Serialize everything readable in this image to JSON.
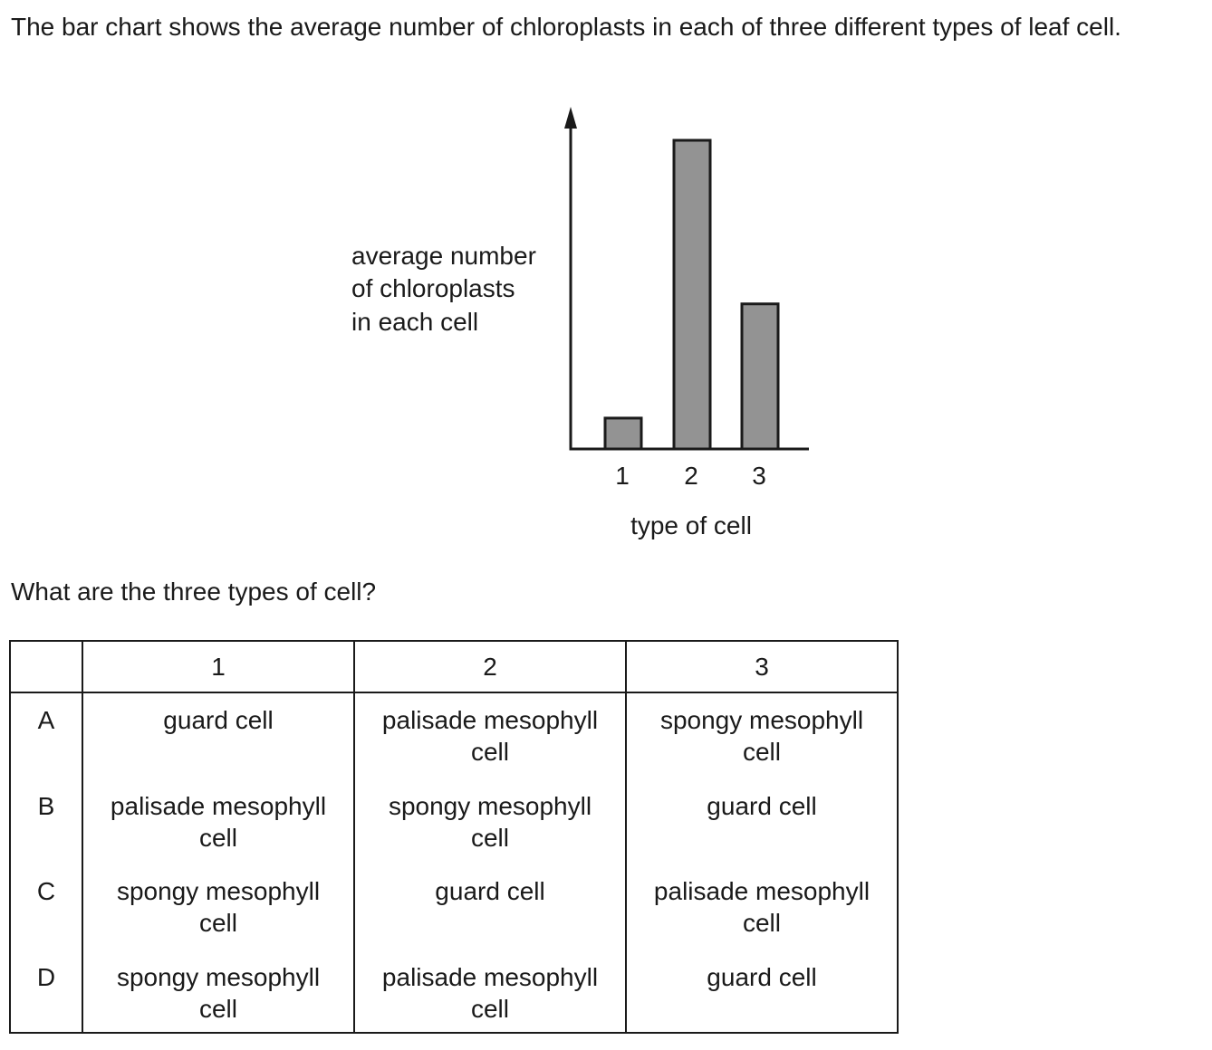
{
  "intro": "The bar chart shows the average number of chloroplasts in each of three different types of leaf cell.",
  "question": "What are the three types of cell?",
  "chart_data": {
    "type": "bar",
    "categories": [
      "1",
      "2",
      "3"
    ],
    "values": [
      1,
      10,
      4.7
    ],
    "ylabel_lines": [
      "average number",
      "of chloroplasts",
      "in each cell"
    ],
    "xlabel": "type of cell",
    "ylim": [
      0,
      11
    ],
    "bar_color": "#939393",
    "axis_color": "#1a1a1a",
    "grid": false
  },
  "table": {
    "headers": [
      "",
      "1",
      "2",
      "3"
    ],
    "rows": [
      {
        "letter": "A",
        "cells": [
          [
            "guard cell"
          ],
          [
            "palisade mesophyll",
            "cell"
          ],
          [
            "spongy mesophyll",
            "cell"
          ]
        ]
      },
      {
        "letter": "B",
        "cells": [
          [
            "palisade mesophyll",
            "cell"
          ],
          [
            "spongy mesophyll",
            "cell"
          ],
          [
            "guard cell"
          ]
        ]
      },
      {
        "letter": "C",
        "cells": [
          [
            "spongy mesophyll",
            "cell"
          ],
          [
            "guard cell"
          ],
          [
            "palisade mesophyll",
            "cell"
          ]
        ]
      },
      {
        "letter": "D",
        "cells": [
          [
            "spongy mesophyll",
            "cell"
          ],
          [
            "palisade mesophyll",
            "cell"
          ],
          [
            "guard cell"
          ]
        ]
      }
    ]
  }
}
